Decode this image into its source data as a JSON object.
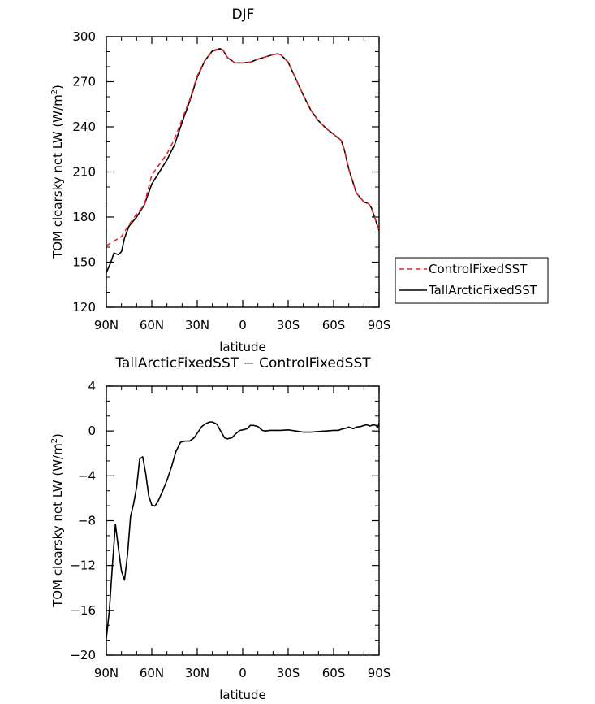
{
  "chart_data": [
    {
      "type": "line",
      "title": "DJF",
      "xlabel": "latitude",
      "ylabel": "TOM clearsky net LW (W/m²)",
      "xlim": [
        90,
        -90
      ],
      "ylim": [
        120,
        300
      ],
      "x_ticks": [
        {
          "value": 90,
          "label": "90N"
        },
        {
          "value": 60,
          "label": "60N"
        },
        {
          "value": 30,
          "label": "30N"
        },
        {
          "value": 0,
          "label": "0"
        },
        {
          "value": -30,
          "label": "30S"
        },
        {
          "value": -60,
          "label": "60S"
        },
        {
          "value": -90,
          "label": "90S"
        }
      ],
      "y_ticks": [
        120,
        150,
        180,
        210,
        240,
        270,
        300
      ],
      "legend": {
        "position": "right",
        "entries": [
          "ControlFixedSST",
          "TallArcticFixedSST"
        ]
      },
      "series": [
        {
          "name": "ControlFixedSST",
          "color": "#e8252b",
          "dash": "dashed",
          "x": [
            90,
            85,
            80,
            75,
            70,
            65,
            60,
            55,
            50,
            45,
            40,
            35,
            30,
            25,
            20,
            15,
            13,
            10,
            5,
            0,
            -5,
            -10,
            -15,
            -20,
            -23,
            -25,
            -30,
            -35,
            -40,
            -45,
            -50,
            -55,
            -60,
            -65,
            -67,
            -70,
            -75,
            -80,
            -83,
            -85,
            -90
          ],
          "values": [
            161,
            164,
            167,
            175,
            182,
            188,
            208,
            215,
            222,
            232,
            245,
            258,
            274,
            284,
            290,
            292,
            291,
            286,
            282.5,
            282.5,
            283,
            285,
            286.5,
            288,
            288.5,
            288,
            283,
            272,
            261,
            251,
            244,
            239,
            235,
            231,
            225,
            212,
            196,
            190,
            189,
            186,
            171
          ]
        },
        {
          "name": "TallArcticFixedSST",
          "color": "#000000",
          "dash": "solid",
          "x": [
            90,
            87,
            85,
            82,
            80,
            78,
            75,
            70,
            65,
            60,
            55,
            50,
            45,
            40,
            35,
            30,
            25,
            20,
            15,
            13,
            10,
            5,
            0,
            -5,
            -10,
            -15,
            -20,
            -23,
            -25,
            -30,
            -35,
            -40,
            -45,
            -50,
            -55,
            -60,
            -65,
            -67,
            -70,
            -75,
            -80,
            -83,
            -85,
            -90
          ],
          "values": [
            143,
            150,
            156,
            155,
            157,
            166,
            174,
            180,
            188,
            202,
            210,
            218,
            228,
            243,
            257,
            273,
            284,
            290.5,
            292,
            291,
            286,
            282.5,
            282.5,
            283,
            285,
            286.5,
            288,
            288.5,
            288,
            283,
            272,
            261,
            251,
            244,
            239,
            235,
            231,
            225,
            212,
            196,
            190,
            189,
            186,
            171
          ]
        }
      ]
    },
    {
      "type": "line",
      "title": "TallArcticFixedSST − ControlFixedSST",
      "xlabel": "latitude",
      "ylabel": "TOM clearsky net LW (W/m²)",
      "xlim": [
        90,
        -90
      ],
      "ylim": [
        -20,
        4
      ],
      "x_ticks": [
        {
          "value": 90,
          "label": "90N"
        },
        {
          "value": 60,
          "label": "60N"
        },
        {
          "value": 30,
          "label": "30N"
        },
        {
          "value": 0,
          "label": "0"
        },
        {
          "value": -30,
          "label": "30S"
        },
        {
          "value": -60,
          "label": "60S"
        },
        {
          "value": -90,
          "label": "90S"
        }
      ],
      "y_ticks": [
        -20,
        -16,
        -12,
        -8,
        -4,
        0,
        4
      ],
      "series": [
        {
          "name": "TallArcticFixedSST − ControlFixedSST",
          "color": "#000000",
          "dash": "solid",
          "x": [
            90,
            88,
            86,
            84,
            82,
            80,
            78,
            76,
            74,
            72,
            70,
            68,
            66,
            64,
            62,
            60,
            58,
            56,
            53,
            50,
            47,
            44,
            41,
            38,
            35,
            32,
            30,
            27,
            25,
            22,
            20,
            17,
            15,
            12,
            10,
            7,
            5,
            2,
            0,
            -3,
            -5,
            -7,
            -10,
            -13,
            -15,
            -18,
            -20,
            -25,
            -30,
            -35,
            -40,
            -45,
            -50,
            -55,
            -60,
            -63,
            -65,
            -68,
            -70,
            -73,
            -75,
            -78,
            -80,
            -82,
            -84,
            -86,
            -88,
            -89,
            -90
          ],
          "values": [
            -18.5,
            -16,
            -12,
            -8.3,
            -10.5,
            -12.5,
            -13.3,
            -11,
            -7.6,
            -6.5,
            -5,
            -2.5,
            -2.3,
            -3.8,
            -5.8,
            -6.6,
            -6.7,
            -6.3,
            -5.4,
            -4.4,
            -3.2,
            -1.8,
            -1,
            -0.9,
            -0.9,
            -0.6,
            -0.2,
            0.4,
            0.6,
            0.8,
            0.8,
            0.6,
            0.1,
            -0.6,
            -0.7,
            -0.6,
            -0.3,
            0.05,
            0.1,
            0.2,
            0.5,
            0.5,
            0.4,
            0.05,
            0,
            0.05,
            0.05,
            0.05,
            0.1,
            0,
            -0.1,
            -0.1,
            -0.05,
            0,
            0.05,
            0.05,
            0.15,
            0.25,
            0.35,
            0.2,
            0.35,
            0.4,
            0.5,
            0.55,
            0.45,
            0.55,
            0.5,
            0.3,
            0.7
          ]
        }
      ]
    }
  ]
}
